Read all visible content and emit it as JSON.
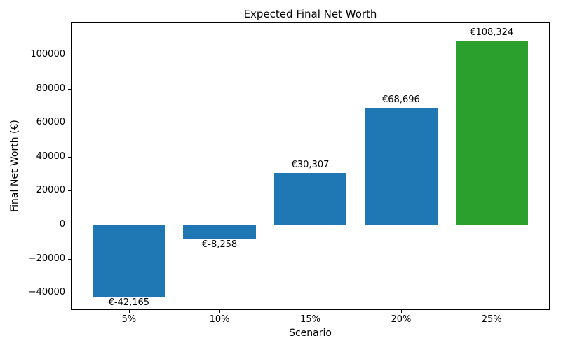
{
  "chart_data": {
    "type": "bar",
    "title": "Expected Final Net Worth",
    "xlabel": "Scenario",
    "ylabel": "Final Net Worth (€)",
    "categories": [
      "5%",
      "10%",
      "15%",
      "20%",
      "25%"
    ],
    "values": [
      -42165,
      -8258,
      30307,
      68696,
      108324
    ],
    "bar_value_labels": [
      "€-42,165",
      "€-8,258",
      "€30,307",
      "€68,696",
      "€108,324"
    ],
    "bar_colors": [
      "#1f77b4",
      "#1f77b4",
      "#1f77b4",
      "#1f77b4",
      "#2ca02c"
    ],
    "yticks": [
      -40000,
      -20000,
      0,
      20000,
      40000,
      60000,
      80000,
      100000
    ],
    "ytick_labels": [
      "−40000",
      "−20000",
      "0",
      "20000",
      "40000",
      "60000",
      "80000",
      "100000"
    ],
    "ylim": [
      -50205,
      118930
    ],
    "xlim": [
      -0.64,
      4.64
    ],
    "bar_width": 0.8,
    "grid": false,
    "legend": "none",
    "background_color": "#ffffff",
    "spine_color": "#000000",
    "text_color": "#000000"
  }
}
